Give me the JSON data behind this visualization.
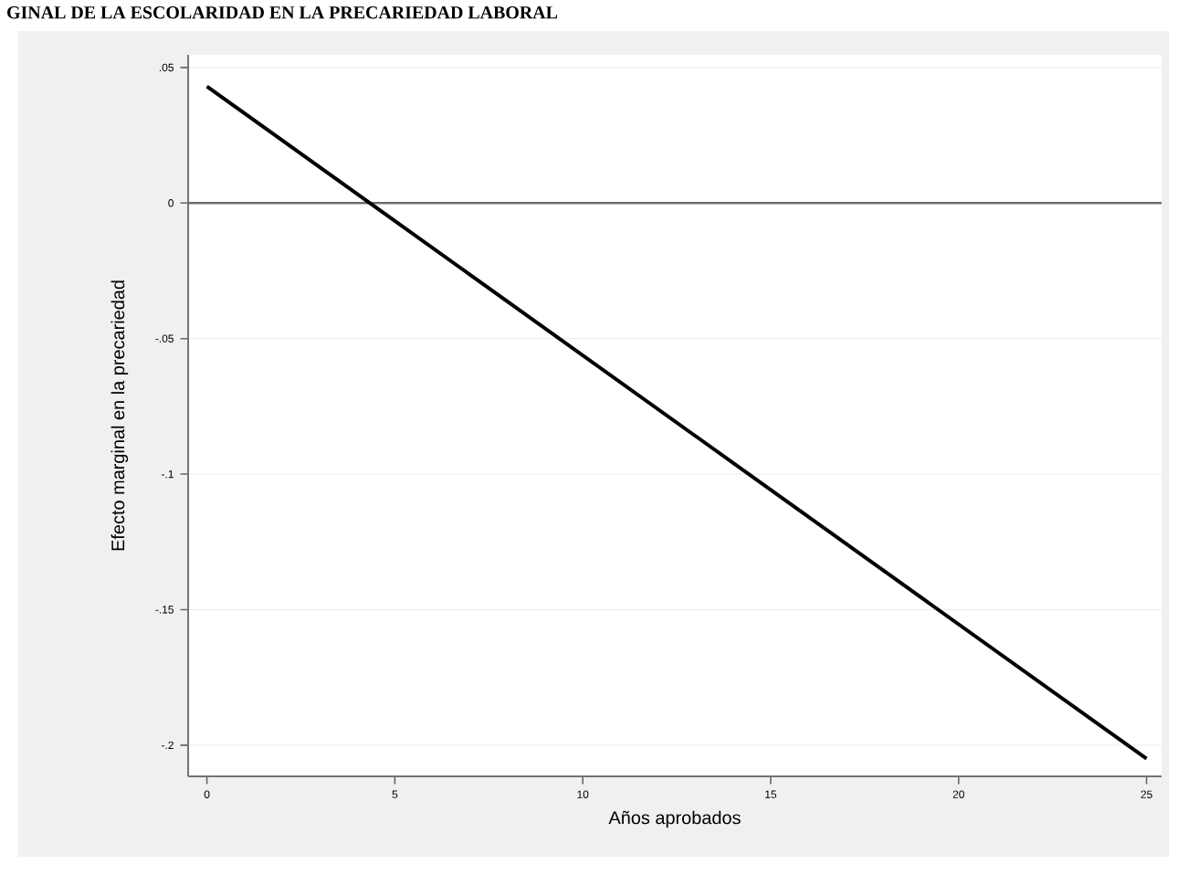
{
  "chart_data": {
    "type": "line",
    "title": "GINAL DE LA ESCOLARIDAD EN LA PRECARIEDAD LABORAL",
    "xlabel": "Años aprobados",
    "ylabel": "Efecto marginal en la precariedad",
    "x": [
      0,
      25
    ],
    "series": [
      {
        "color": "#000000",
        "values": [
          0.043,
          -0.205
        ]
      }
    ],
    "xlim": [
      -0.5,
      25.4
    ],
    "ylim": [
      -0.2115,
      0.0547
    ],
    "xticks": [
      0,
      5,
      10,
      15,
      20,
      25
    ],
    "yticks": [
      {
        "value": 0.05,
        "label": ".05"
      },
      {
        "value": 0,
        "label": "0"
      },
      {
        "value": -0.05,
        "label": "-.05"
      },
      {
        "value": -0.1,
        "label": "-.1"
      },
      {
        "value": -0.15,
        "label": "-.15"
      },
      {
        "value": -0.2,
        "label": "-.2"
      }
    ],
    "grid": "y",
    "marker": "none",
    "line_style": "solid",
    "ref_lines": [
      {
        "axis": "y",
        "value": 0,
        "color": "#6e6e6e"
      }
    ]
  }
}
